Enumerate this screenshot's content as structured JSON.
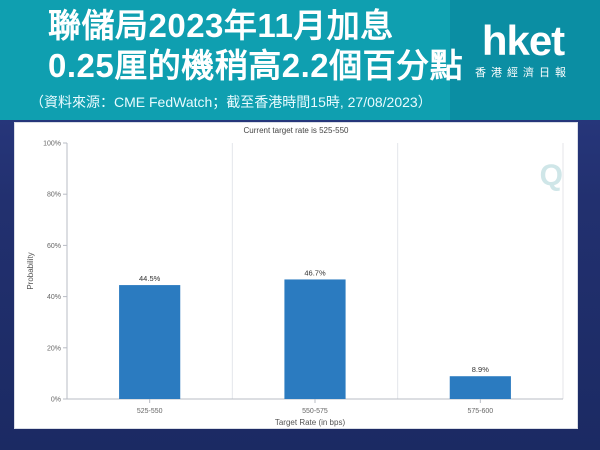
{
  "header": {
    "title_line1": "聯儲局2023年11月加息",
    "title_line2": "0.25厘的機稍高2.2個百分點",
    "source": "（資料來源：CME FedWatch；截至香港時間15時, 27/08/2023）"
  },
  "brand": {
    "name": "hket",
    "tagline": "香港經濟日報"
  },
  "watermark": "Q",
  "colors": {
    "banner": "#0f9fb0",
    "bar": "#2b7bc0",
    "background": "#22306f"
  },
  "chart_data": {
    "type": "bar",
    "title": "Current target rate is 525-550",
    "xlabel": "Target Rate (in bps)",
    "ylabel": "Probability",
    "categories": [
      "525-550",
      "550-575",
      "575-600"
    ],
    "values": [
      44.5,
      46.7,
      8.9
    ],
    "data_labels": [
      "44.5%",
      "46.7%",
      "8.9%"
    ],
    "ylim": [
      0,
      100
    ],
    "yticks": [
      0,
      20,
      40,
      60,
      80,
      100
    ],
    "ytick_labels": [
      "0%",
      "20%",
      "40%",
      "60%",
      "80%",
      "100%"
    ],
    "grid": "vertical",
    "legend": "none"
  }
}
